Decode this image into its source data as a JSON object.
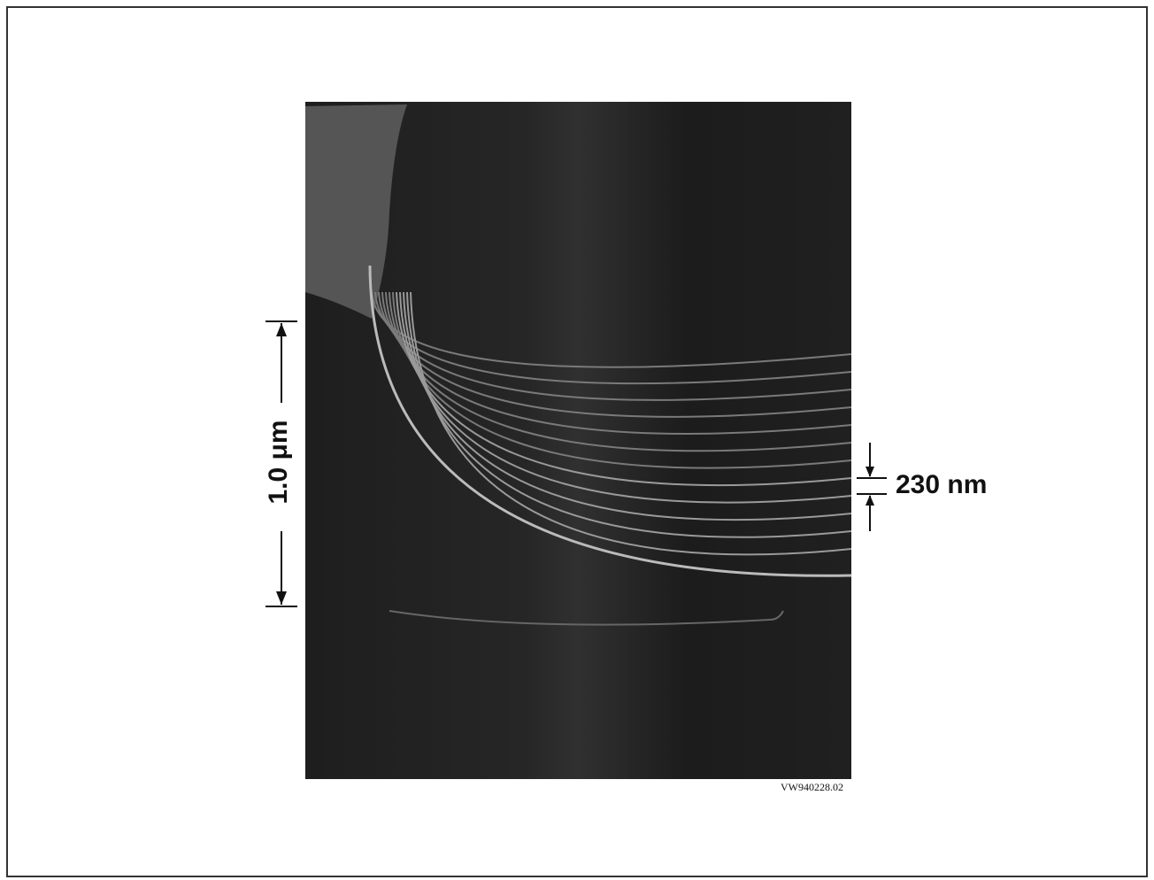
{
  "figure": {
    "scale_bar_label": "1.0 μm",
    "spacing_label": "230 nm",
    "figure_id": "VW940228.02"
  }
}
